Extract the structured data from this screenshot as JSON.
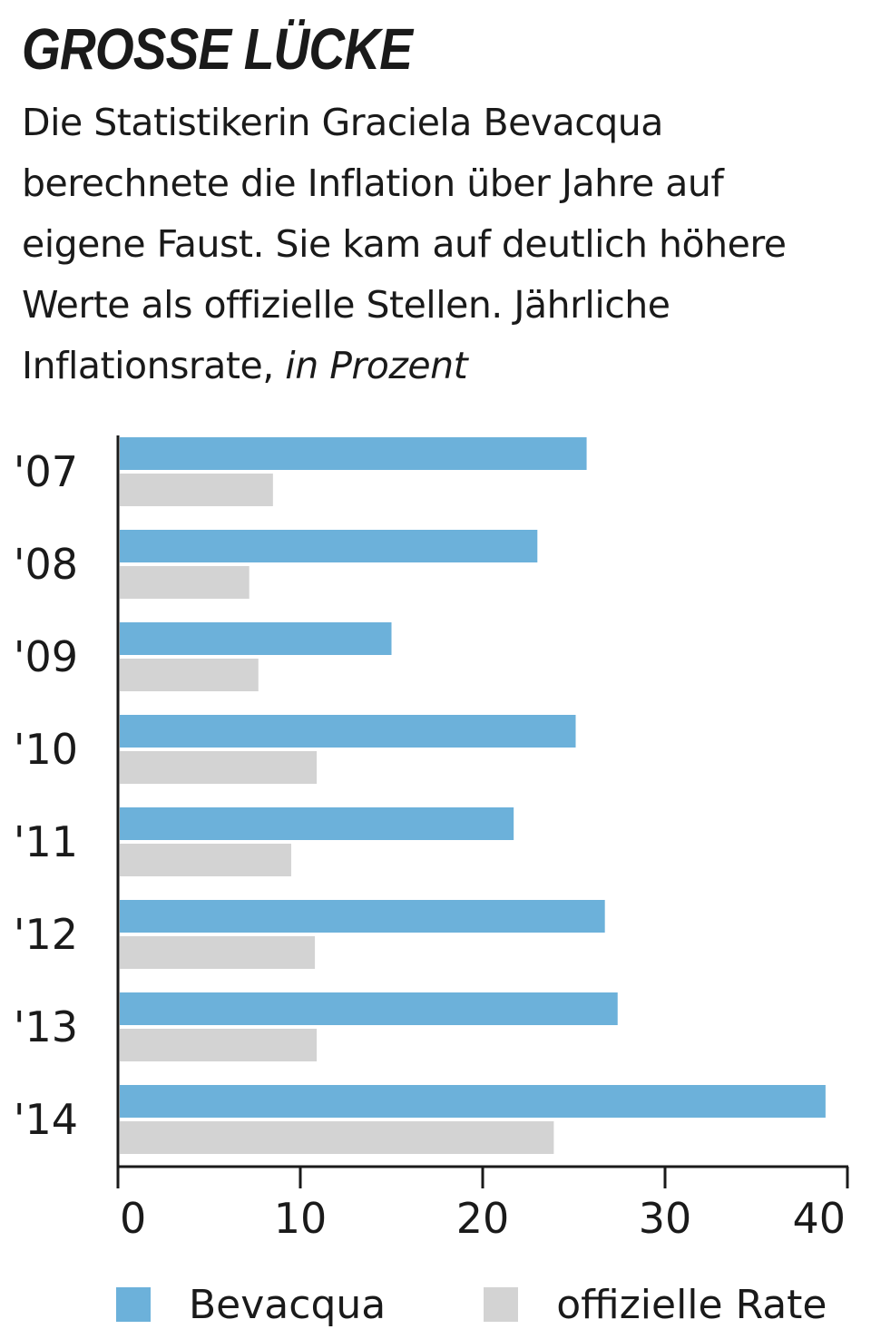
{
  "header": {
    "title": "GROSSE LÜCKE",
    "subtitle": "Die Statistikerin Graciela Bevacqua berechnete die Inflation über Jahre auf eigene Faust. Sie kam auf deutlich höhere Werte als offizielle Stellen. Jährliche Inflationsrate,",
    "unit": "in Prozent"
  },
  "colors": {
    "bevacqua": "#6cb1da",
    "official": "#d3d3d3",
    "axis": "#1a1a1a"
  },
  "chart_data": {
    "type": "bar",
    "orientation": "horizontal",
    "title": "GROSSE LÜCKE",
    "xlabel": "",
    "ylabel": "",
    "categories": [
      "'07",
      "'08",
      "'09",
      "'10",
      "'11",
      "'12",
      "'13",
      "'14"
    ],
    "series": [
      {
        "name": "Bevacqua",
        "values": [
          25.7,
          23.0,
          15.0,
          25.1,
          21.7,
          26.7,
          27.4,
          38.8
        ]
      },
      {
        "name": "offizielle Rate",
        "values": [
          8.5,
          7.2,
          7.7,
          10.9,
          9.5,
          10.8,
          10.9,
          23.9
        ]
      }
    ],
    "xlim": [
      0,
      40
    ],
    "xticks": [
      0,
      10,
      20,
      30,
      40
    ],
    "grid": false,
    "legend": "bottom"
  }
}
